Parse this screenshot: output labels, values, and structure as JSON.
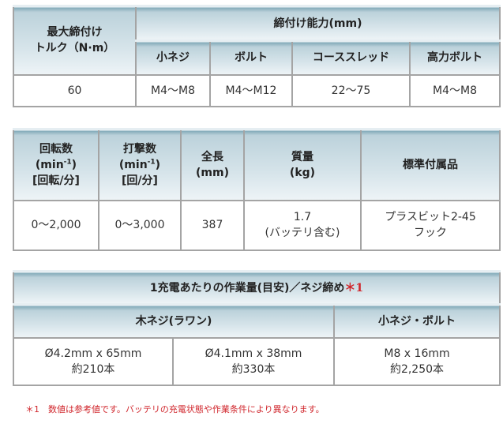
{
  "table1": {
    "torque_header": [
      "最大締付け",
      "トルク（N·m）"
    ],
    "capacity_header": "締付け能力(mm)",
    "sub_headers": [
      "小ネジ",
      "ボルト",
      "コーススレッド",
      "高力ボルト"
    ],
    "values": [
      "60",
      "M4〜M8",
      "M4〜M12",
      "22〜75",
      "M4〜M8"
    ]
  },
  "table2": {
    "headers": [
      {
        "line1": "回転数",
        "line2": "(min",
        "sup": "-1",
        "line2_end": ")",
        "line3": "[回転/分]"
      },
      {
        "line1": "打撃数",
        "line2": "(min",
        "sup": "-1",
        "line2_end": ")",
        "line3": "[回/分]"
      },
      {
        "line1": "全長",
        "line2": "(mm)"
      },
      {
        "line1": "質量",
        "line2": "(kg)"
      },
      {
        "line1": "標準付属品"
      }
    ],
    "values": [
      {
        "line1": "0〜2,000"
      },
      {
        "line1": "0〜3,000"
      },
      {
        "line1": "387"
      },
      {
        "line1": "1.7",
        "line2": "(バッテリ含む)"
      },
      {
        "line1": "プラスビット2-45",
        "line2": "フック"
      }
    ]
  },
  "table3": {
    "title": "1充電あたりの作業量(目安)／ネジ締め",
    "title_mark": "＊1",
    "groups": [
      "木ネジ(ラワン)",
      "小ネジ・ボルト"
    ],
    "cells": [
      {
        "size": "Ø4.2mm x 65mm",
        "count": "約210本"
      },
      {
        "size": "Ø4.1mm x 38mm",
        "count": "約330本"
      },
      {
        "size": "M8 x 16mm",
        "count": "約2,250本"
      }
    ]
  },
  "footnote": "＊1　数値は参考値です。バッテリの充電状態や作業条件により異なります。",
  "colors": {
    "accent_red": "#d0262c",
    "header_gradient_top": "#9dbcc8",
    "border": "#a4a4a4"
  }
}
